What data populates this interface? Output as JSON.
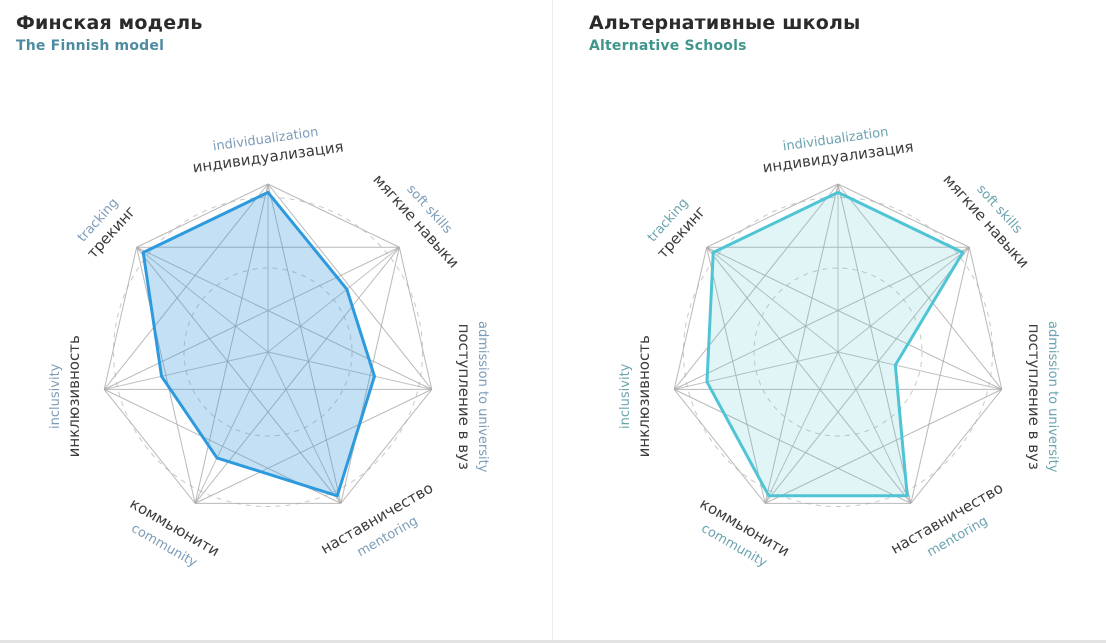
{
  "page": {
    "background": "#ffffff"
  },
  "panels": [
    {
      "title": "Финская модель",
      "subtitle": "The Finnish model",
      "title_color": "#2b2b2b",
      "subtitle_color": "#4d8ba0"
    },
    {
      "title": "Альтернативные школы",
      "subtitle": "Alternative Schools",
      "title_color": "#2b2b2b",
      "subtitle_color": "#3f968c"
    }
  ],
  "chart_data": [
    {
      "type": "radar",
      "title": "Финская модель",
      "subtitle": "The Finnish model",
      "axes": [
        {
          "ru": "индивидуализация",
          "en": "individualization"
        },
        {
          "ru": "мягкие навыки",
          "en": "soft skills"
        },
        {
          "ru": "поступление в вуз",
          "en": "admission to university"
        },
        {
          "ru": "наставничество",
          "en": "mentoring"
        },
        {
          "ru": "коммьюнити",
          "en": "community"
        },
        {
          "ru": "инклюзивность",
          "en": "inclusivity"
        },
        {
          "ru": "трекинг",
          "en": "tracking"
        }
      ],
      "values": [
        9.5,
        6,
        6.5,
        9.5,
        7,
        6.5,
        9.5
      ],
      "scale": {
        "min": 0,
        "max": 10
      },
      "grid": {
        "web": "complete-graph",
        "spokes": true,
        "dashed_circles_at": [
          5,
          9.2
        ]
      },
      "legend_position": "none",
      "stroke": "#2e9ade",
      "fill": "rgba(56,152,219,0.30)",
      "label_ru_color": "#3c3c3c",
      "label_en_color": "#7d9cb8",
      "grid_color": "#a8a8a8",
      "dash_color": "#c9c9c9"
    },
    {
      "type": "radar",
      "title": "Альтернативные школы",
      "subtitle": "Alternative Schools",
      "axes": [
        {
          "ru": "индивидуализация",
          "en": "individualization"
        },
        {
          "ru": "мягкие навыки",
          "en": "soft skills"
        },
        {
          "ru": "поступление в вуз",
          "en": "admission to university"
        },
        {
          "ru": "наставничество",
          "en": "mentoring"
        },
        {
          "ru": "коммьюнити",
          "en": "community"
        },
        {
          "ru": "инклюзивность",
          "en": "inclusivity"
        },
        {
          "ru": "трекинг",
          "en": "tracking"
        }
      ],
      "values": [
        9.5,
        9.5,
        3.5,
        9.5,
        9.5,
        8,
        9.5
      ],
      "scale": {
        "min": 0,
        "max": 10
      },
      "grid": {
        "web": "complete-graph",
        "spokes": true,
        "dashed_circles_at": [
          5,
          9.2
        ]
      },
      "legend_position": "none",
      "stroke": "#4fc4d4",
      "fill": "rgba(86,197,213,0.18)",
      "label_ru_color": "#3c3c3c",
      "label_en_color": "#6ba3b0",
      "grid_color": "#a8a8a8",
      "dash_color": "#c9c9c9"
    }
  ]
}
